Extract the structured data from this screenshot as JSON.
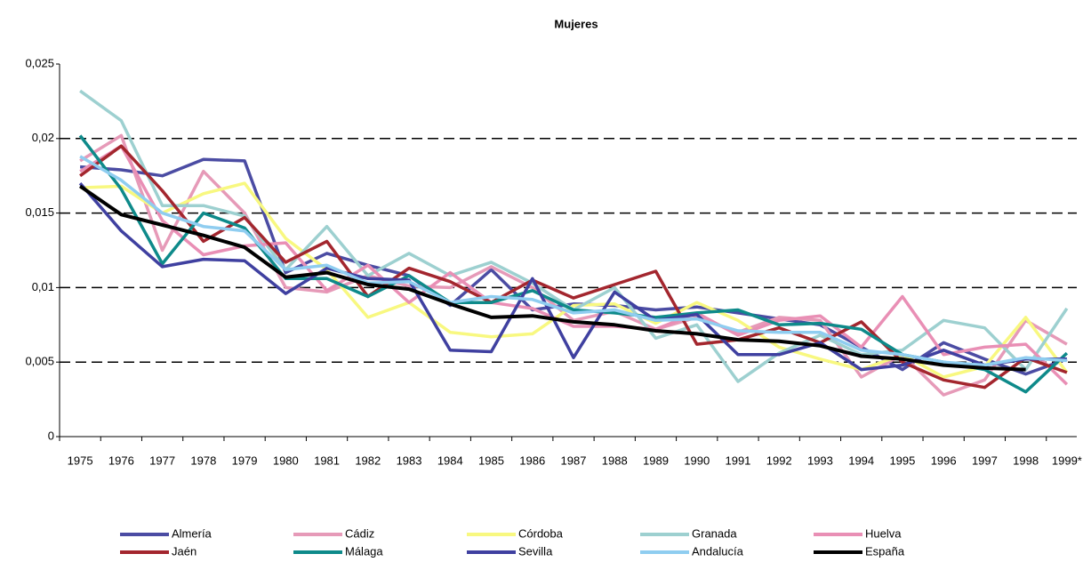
{
  "chart_data": {
    "type": "line",
    "title": "Mujeres",
    "categories": [
      "1975",
      "1976",
      "1977",
      "1978",
      "1979",
      "1980",
      "1981",
      "1982",
      "1983",
      "1984",
      "1985",
      "1986",
      "1987",
      "1988",
      "1989",
      "1990",
      "1991",
      "1992",
      "1993",
      "1994",
      "1995",
      "1996",
      "1997",
      "1998",
      "1999*"
    ],
    "ylim": [
      0,
      0.025
    ],
    "yticks": [
      0,
      {
        "value": 0.005,
        "label": "0,005"
      },
      {
        "value": 0.01,
        "label": "0,01"
      },
      {
        "value": 0.015,
        "label": "0,015"
      },
      {
        "value": 0.02,
        "label": "0,02"
      },
      {
        "value": 0.025,
        "label": "0,025"
      }
    ],
    "grid": true,
    "legend": "bottom",
    "series": [
      {
        "name": "Almería",
        "color": "#4b4ca3",
        "values": [
          0.0181,
          0.0179,
          0.0175,
          0.0186,
          0.0185,
          0.011,
          0.0123,
          0.0115,
          0.0108,
          0.0088,
          0.0112,
          0.0085,
          0.0089,
          0.0088,
          0.0085,
          0.0087,
          0.0083,
          0.0079,
          0.0075,
          0.006,
          0.0045,
          0.0063,
          0.0052,
          0.0042,
          0.0052
        ]
      },
      {
        "name": "Cádiz",
        "color": "#e69ab8",
        "values": [
          0.0185,
          0.0202,
          0.0125,
          0.0178,
          0.015,
          0.01,
          0.0097,
          0.0108,
          0.0101,
          0.01,
          0.0114,
          0.01,
          0.0078,
          0.0084,
          0.0072,
          0.008,
          0.007,
          0.008,
          0.0078,
          0.004,
          0.0055,
          0.0028,
          0.0038,
          0.0078,
          0.0062
        ]
      },
      {
        "name": "Córdoba",
        "color": "#f8f880",
        "values": [
          0.0167,
          0.0168,
          0.015,
          0.0163,
          0.017,
          0.0133,
          0.0112,
          0.008,
          0.009,
          0.007,
          0.0067,
          0.0069,
          0.0088,
          0.0089,
          0.0076,
          0.009,
          0.0078,
          0.006,
          0.0052,
          0.0045,
          0.0055,
          0.004,
          0.0047,
          0.008,
          0.0043
        ]
      },
      {
        "name": "Granada",
        "color": "#9dd0d0",
        "values": [
          0.0232,
          0.0212,
          0.0155,
          0.0155,
          0.0148,
          0.0112,
          0.0141,
          0.0108,
          0.0123,
          0.0108,
          0.0117,
          0.0103,
          0.0085,
          0.01,
          0.0066,
          0.0075,
          0.0037,
          0.0056,
          0.0068,
          0.0055,
          0.0058,
          0.0078,
          0.0073,
          0.0045,
          0.0086
        ]
      },
      {
        "name": "Huelva",
        "color": "#e98fb5",
        "values": [
          0.0178,
          0.0195,
          0.0145,
          0.0122,
          0.0128,
          0.013,
          0.0098,
          0.0115,
          0.009,
          0.011,
          0.009,
          0.0086,
          0.0074,
          0.0074,
          0.0072,
          0.0083,
          0.0068,
          0.0078,
          0.0081,
          0.006,
          0.0094,
          0.0055,
          0.006,
          0.0062,
          0.0035
        ]
      },
      {
        "name": "Jaén",
        "color": "#a3262e",
        "values": [
          0.0175,
          0.0195,
          0.0165,
          0.0131,
          0.0147,
          0.0117,
          0.0131,
          0.0094,
          0.0113,
          0.0104,
          0.009,
          0.0105,
          0.0093,
          0.0102,
          0.0111,
          0.0062,
          0.0065,
          0.0073,
          0.0063,
          0.0077,
          0.005,
          0.0038,
          0.0033,
          0.0053,
          0.0043
        ]
      },
      {
        "name": "Málaga",
        "color": "#0e8a8a",
        "values": [
          0.0202,
          0.0166,
          0.0116,
          0.015,
          0.014,
          0.0106,
          0.0106,
          0.0094,
          0.0108,
          0.009,
          0.009,
          0.0098,
          0.0085,
          0.0083,
          0.008,
          0.0083,
          0.0085,
          0.0075,
          0.0076,
          0.0072,
          0.0055,
          0.005,
          0.0045,
          0.003,
          0.0056
        ]
      },
      {
        "name": "Sevilla",
        "color": "#3f40a0",
        "values": [
          0.017,
          0.0138,
          0.0114,
          0.0119,
          0.0118,
          0.0096,
          0.0113,
          0.0106,
          0.0105,
          0.0058,
          0.0057,
          0.0106,
          0.0053,
          0.0097,
          0.0078,
          0.0082,
          0.0055,
          0.0055,
          0.0063,
          0.0045,
          0.0048,
          0.0058,
          0.0048,
          0.0052,
          0.0052
        ]
      },
      {
        "name": "Andalucía",
        "color": "#8fcdf0",
        "values": [
          0.0188,
          0.0172,
          0.015,
          0.0141,
          0.0138,
          0.0112,
          0.0115,
          0.0103,
          0.0104,
          0.009,
          0.0094,
          0.0092,
          0.0083,
          0.0085,
          0.0078,
          0.0079,
          0.0071,
          0.007,
          0.007,
          0.0058,
          0.0055,
          0.005,
          0.0048,
          0.0053,
          0.0051
        ]
      },
      {
        "name": "España",
        "color": "#000000",
        "values": [
          0.0168,
          0.0149,
          0.0142,
          0.0135,
          0.0127,
          0.0107,
          0.011,
          0.0102,
          0.0099,
          0.0089,
          0.008,
          0.0081,
          0.0077,
          0.0075,
          0.0071,
          0.0069,
          0.0065,
          0.0064,
          0.0061,
          0.0054,
          0.0052,
          0.0048,
          0.0046,
          0.0045,
          null
        ]
      }
    ]
  }
}
